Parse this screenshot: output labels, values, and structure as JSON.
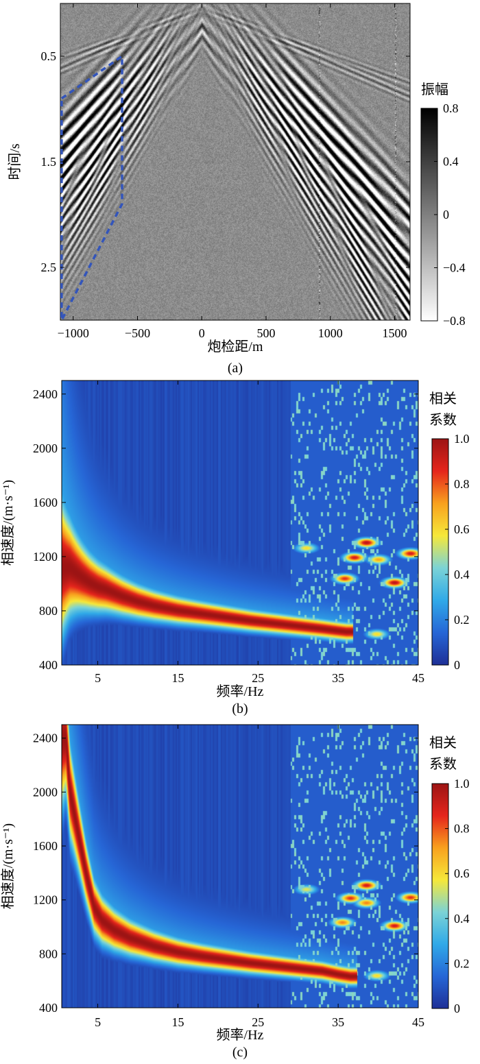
{
  "chart_data": [
    {
      "id": "a",
      "type": "heatmap",
      "caption": "(a)",
      "xlabel": "炮检距/m",
      "ylabel": "时间/s",
      "xlim": [
        -1100,
        1620
      ],
      "ylim": [
        0,
        3.0
      ],
      "x_ticks": [
        -1000,
        -500,
        0,
        500,
        1000,
        1500
      ],
      "x_tick_labels": [
        "−1000",
        "−500",
        "0",
        "500",
        "1000",
        "1500"
      ],
      "y_ticks": [
        0.5,
        1.5,
        2.5
      ],
      "y_tick_labels": [
        "0.5",
        "1.5",
        "2.5"
      ],
      "colorbar": {
        "title": "振幅",
        "range": [
          -0.8,
          0.8
        ],
        "ticks": [
          0.8,
          0.4,
          0,
          -0.4,
          -0.8
        ],
        "tick_labels": [
          "0.8",
          "0.4",
          "0",
          "−0.4",
          "−0.8"
        ],
        "colors": [
          "#ffffff",
          "#000000"
        ]
      },
      "apex": {
        "offset": 0,
        "time": 0.03
      },
      "selection_window": {
        "style": "dashed",
        "color": "#3355bb",
        "vertices": [
          [
            -1090,
            0.9
          ],
          [
            -620,
            0.5
          ],
          [
            -620,
            1.9
          ],
          [
            -1090,
            3.0
          ]
        ]
      },
      "bad_traces": [
        915,
        1505
      ]
    },
    {
      "id": "b",
      "type": "heatmap",
      "caption": "(b)",
      "xlabel": "频率/Hz",
      "ylabel": "相速度/(m·s⁻¹)",
      "xlim": [
        0.5,
        45
      ],
      "ylim": [
        400,
        2500
      ],
      "x_ticks": [
        5,
        15,
        25,
        35,
        45
      ],
      "x_tick_labels": [
        "5",
        "15",
        "25",
        "35",
        "45"
      ],
      "y_ticks": [
        400,
        800,
        1200,
        1600,
        2000,
        2400
      ],
      "y_tick_labels": [
        "400",
        "800",
        "1200",
        "1600",
        "2000",
        "2400"
      ],
      "colorbar": {
        "title_lines": [
          "相关",
          "系数"
        ],
        "range": [
          0,
          1.0
        ],
        "ticks": [
          1.0,
          0.8,
          0.6,
          0.4,
          0.2,
          0
        ],
        "tick_labels": [
          "1.0",
          "0.8",
          "0.6",
          "0.4",
          "0.2",
          "0"
        ],
        "colors": [
          "#1e2f96",
          "#2666d6",
          "#30a9e8",
          "#7bd3d6",
          "#f6e83a",
          "#f8a11e",
          "#e5251c",
          "#9c1414"
        ]
      },
      "dispersion_curve": {
        "frequency_hz": [
          1.5,
          3,
          4,
          5,
          6,
          8,
          10,
          12,
          15,
          18,
          21,
          24,
          27,
          30,
          33,
          35,
          36
        ],
        "velocity_ms": [
          1120,
          1050,
          1010,
          980,
          960,
          910,
          870,
          840,
          805,
          780,
          755,
          730,
          710,
          690,
          670,
          655,
          648
        ]
      },
      "high_frequency_blobs": [
        {
          "frequency_hz": 38.5,
          "velocity_ms": 1305,
          "value": 0.95
        },
        {
          "frequency_hz": 37.0,
          "velocity_ms": 1195,
          "value": 0.9
        },
        {
          "frequency_hz": 35.8,
          "velocity_ms": 1040,
          "value": 0.85
        },
        {
          "frequency_hz": 40.0,
          "velocity_ms": 1180,
          "value": 0.7
        },
        {
          "frequency_hz": 42.0,
          "velocity_ms": 1010,
          "value": 0.95
        },
        {
          "frequency_hz": 44.0,
          "velocity_ms": 1225,
          "value": 0.9
        },
        {
          "frequency_hz": 31.0,
          "velocity_ms": 1265,
          "value": 0.6
        },
        {
          "frequency_hz": 39.8,
          "velocity_ms": 630,
          "value": 0.6
        }
      ]
    },
    {
      "id": "c",
      "type": "heatmap",
      "caption": "(c)",
      "xlabel": "频率/Hz",
      "ylabel": "相速度/(m·s⁻¹)",
      "xlim": [
        0.5,
        45
      ],
      "ylim": [
        400,
        2500
      ],
      "x_ticks": [
        5,
        15,
        25,
        35,
        45
      ],
      "x_tick_labels": [
        "5",
        "15",
        "25",
        "35",
        "45"
      ],
      "y_ticks": [
        400,
        800,
        1200,
        1600,
        2000,
        2400
      ],
      "y_tick_labels": [
        "400",
        "800",
        "1200",
        "1600",
        "2000",
        "2400"
      ],
      "colorbar": {
        "title_lines": [
          "相关",
          "系数"
        ],
        "range": [
          0,
          1.0
        ],
        "ticks": [
          1.0,
          0.8,
          0.6,
          0.4,
          0.2,
          0
        ],
        "tick_labels": [
          "1.0",
          "0.8",
          "0.6",
          "0.4",
          "0.2",
          "0"
        ],
        "colors": [
          "#1e2f96",
          "#2666d6",
          "#30a9e8",
          "#7bd3d6",
          "#f6e83a",
          "#f8a11e",
          "#e5251c",
          "#9c1414"
        ]
      },
      "dispersion_curve": {
        "frequency_hz": [
          1.0,
          1.5,
          2.5,
          3.5,
          4.5,
          5.5,
          7,
          9,
          12,
          15,
          18,
          21,
          24,
          27,
          30,
          33,
          35,
          36.5
        ],
        "velocity_ms": [
          2400,
          2000,
          1700,
          1400,
          1150,
          1050,
          980,
          920,
          860,
          815,
          785,
          760,
          735,
          715,
          695,
          675,
          650,
          635
        ]
      },
      "high_frequency_blobs": [
        {
          "frequency_hz": 38.5,
          "velocity_ms": 1310,
          "value": 0.9
        },
        {
          "frequency_hz": 36.5,
          "velocity_ms": 1215,
          "value": 0.85
        },
        {
          "frequency_hz": 38.5,
          "velocity_ms": 1180,
          "value": 0.75
        },
        {
          "frequency_hz": 35.5,
          "velocity_ms": 1035,
          "value": 0.75
        },
        {
          "frequency_hz": 42.0,
          "velocity_ms": 1010,
          "value": 0.9
        },
        {
          "frequency_hz": 44.0,
          "velocity_ms": 1220,
          "value": 0.85
        },
        {
          "frequency_hz": 31.0,
          "velocity_ms": 1280,
          "value": 0.55
        },
        {
          "frequency_hz": 39.8,
          "velocity_ms": 640,
          "value": 0.6
        }
      ]
    }
  ]
}
